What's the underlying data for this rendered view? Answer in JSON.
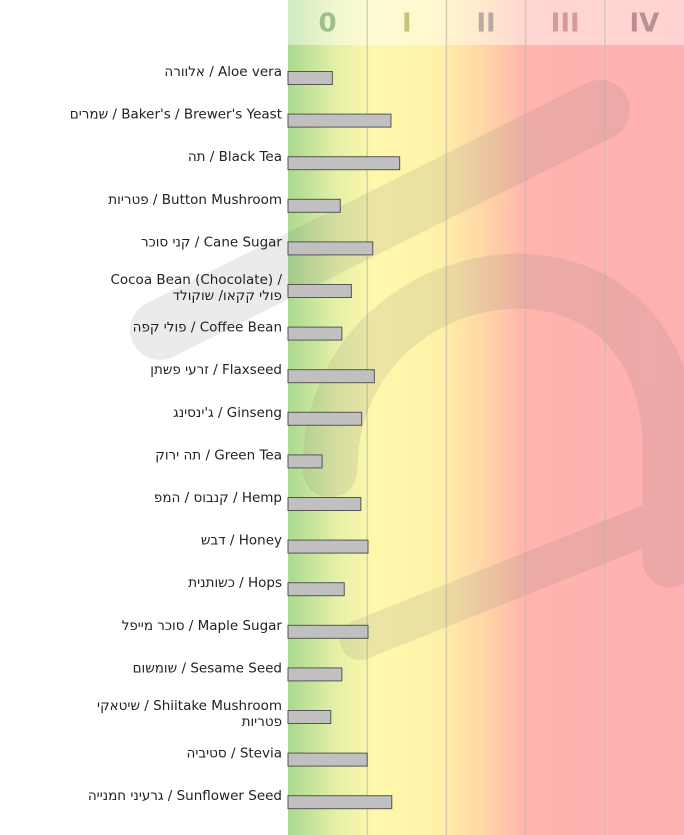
{
  "chart_data": {
    "type": "bar",
    "orientation": "horizontal",
    "categories": [
      "אלוורה / Aloe vera",
      "שמרים / Baker's / Brewer's Yeast",
      "תה / Black Tea",
      "פטריות / Button Mushroom",
      "קני סוכר / Cane Sugar",
      [
        "Cocoa Bean (Chocolate) /",
        "פולי קקאו/ שוקולד"
      ],
      "פולי קפה / Coffee Bean",
      "זרעי פשתן / Flaxseed",
      "ג'ינסינג / Ginseng",
      "תה ירוק / Green Tea",
      "קנבוס / המפ / Hemp",
      "דבש / Honey",
      "כשותנית / Hops",
      "סוכר מייפל / Maple Sugar",
      "שומשום / Sesame Seed",
      [
        "שיטאקי / Shiitake Mushroom",
        "פטריות"
      ],
      "סטיביה / Stevia",
      "גרעיני חמנייה / Sunflower Seed"
    ],
    "values": [
      0.56,
      1.3,
      1.41,
      0.66,
      1.07,
      0.8,
      0.68,
      1.09,
      0.93,
      0.43,
      0.92,
      1.01,
      0.71,
      1.01,
      0.68,
      0.54,
      1.0,
      1.31
    ],
    "color": "#c0c0c0",
    "xlim": [
      0,
      5
    ],
    "xticks": [
      {
        "value": 0.5,
        "label": "0"
      },
      {
        "value": 1.5,
        "label": "I"
      },
      {
        "value": 2.5,
        "label": "II"
      },
      {
        "value": 3.5,
        "label": "III"
      },
      {
        "value": 4.5,
        "label": "IV"
      }
    ],
    "tick_colors": [
      "#9dbf8c",
      "#c9c27a",
      "#b9a9a0",
      "#d59a9a",
      "#b99090"
    ],
    "grid": true
  }
}
